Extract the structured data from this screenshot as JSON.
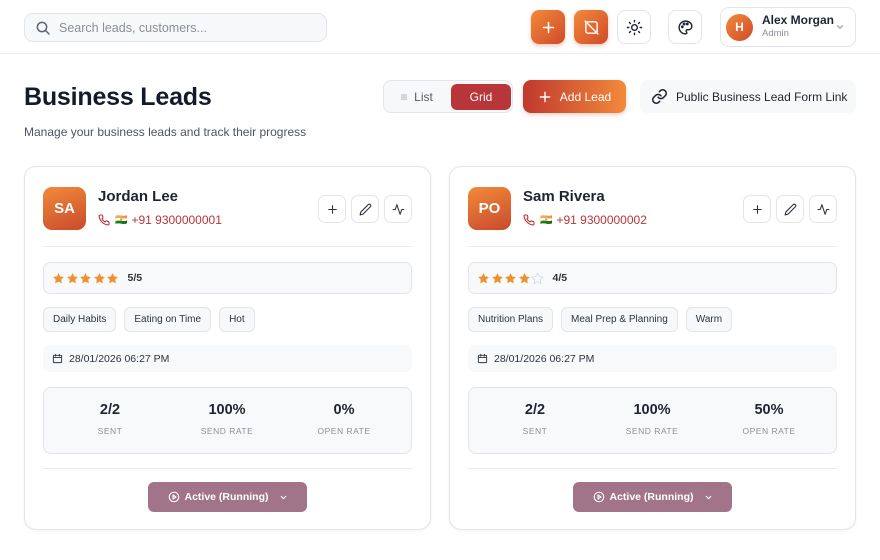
{
  "header": {
    "search_placeholder": "Search leads, customers...",
    "user": {
      "initial": "H",
      "name": "Alex Morgan",
      "role": "Admin"
    }
  },
  "page": {
    "title": "Business Leads",
    "subtitle": "Manage your business leads and track their progress",
    "view_toggle": {
      "list": "List",
      "grid": "Grid",
      "active": "grid"
    },
    "add_lead": "Add Lead",
    "public_link": "Public Business Lead Form Link"
  },
  "leads": [
    {
      "initials": "SA",
      "name": "Jordan Lee",
      "flag": "🇮🇳",
      "phone": "+91 9300000001",
      "rating": 5,
      "rating_text": "5/5",
      "tags": [
        "Daily Habits",
        "Eating on Time",
        "Hot"
      ],
      "date": "28/01/2026 06:27 PM",
      "stats": [
        {
          "value": "2/2",
          "label": "SENT"
        },
        {
          "value": "100%",
          "label": "SEND RATE"
        },
        {
          "value": "0%",
          "label": "OPEN RATE"
        }
      ],
      "status": "Active (Running)"
    },
    {
      "initials": "PO",
      "name": "Sam Rivera",
      "flag": "🇮🇳",
      "phone": "+91 9300000002",
      "rating": 4,
      "rating_text": "4/5",
      "tags": [
        "Nutrition Plans",
        "Meal Prep & Planning",
        "Warm"
      ],
      "date": "28/01/2026 06:27 PM",
      "stats": [
        {
          "value": "2/2",
          "label": "SENT"
        },
        {
          "value": "100%",
          "label": "SEND RATE"
        },
        {
          "value": "50%",
          "label": "OPEN RATE"
        }
      ],
      "status": "Active (Running)"
    }
  ],
  "colors": {
    "accent": "#b8353a",
    "gradient_start": "#f28a3a",
    "gradient_end": "#d04a2a",
    "star": "#f0912f",
    "star_empty": "#d6d9de",
    "status_bg": "#a27489"
  },
  "icons": {
    "search": "search-icon",
    "add": "plus-icon",
    "disabled_notify": "bell-off-icon",
    "theme": "sun-icon",
    "palette": "palette-icon",
    "link": "link-icon",
    "phone": "phone-icon",
    "edit": "pencil-icon",
    "activity": "activity-icon",
    "calendar": "calendar-icon",
    "play": "play-circle-icon"
  }
}
